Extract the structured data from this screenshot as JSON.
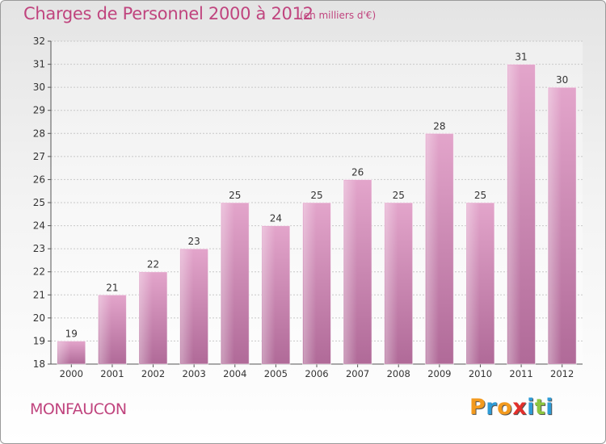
{
  "header": {
    "title": "Charges de Personnel 2000 à 2012",
    "subtitle": "(en milliers d'€)"
  },
  "footer": {
    "commune": "MONFAUCON",
    "brand_letters": [
      "P",
      "r",
      "o",
      "x",
      "i",
      "t",
      "i"
    ],
    "brand_colors": [
      "#f39a1e",
      "#2e9bd6",
      "#f39a1e",
      "#e2302c",
      "#2e9bd6",
      "#8cc63f",
      "#2e9bd6"
    ]
  },
  "colors": {
    "accent": "#c0447e",
    "bar_top": "#e3a5cb",
    "bar_bottom": "#b06a98"
  },
  "chart_data": {
    "type": "bar",
    "title": "Charges de Personnel 2000 à 2012",
    "subtitle": "(en milliers d'€)",
    "categories": [
      "2000",
      "2001",
      "2002",
      "2003",
      "2004",
      "2005",
      "2006",
      "2007",
      "2008",
      "2009",
      "2010",
      "2011",
      "2012"
    ],
    "values": [
      19,
      21,
      22,
      23,
      25,
      24,
      25,
      26,
      25,
      28,
      25,
      31,
      30
    ],
    "ylim": [
      18,
      32
    ],
    "yticks": [
      18,
      19,
      20,
      21,
      22,
      23,
      24,
      25,
      26,
      27,
      28,
      29,
      30,
      31,
      32
    ],
    "grid": true,
    "legend": "none"
  }
}
